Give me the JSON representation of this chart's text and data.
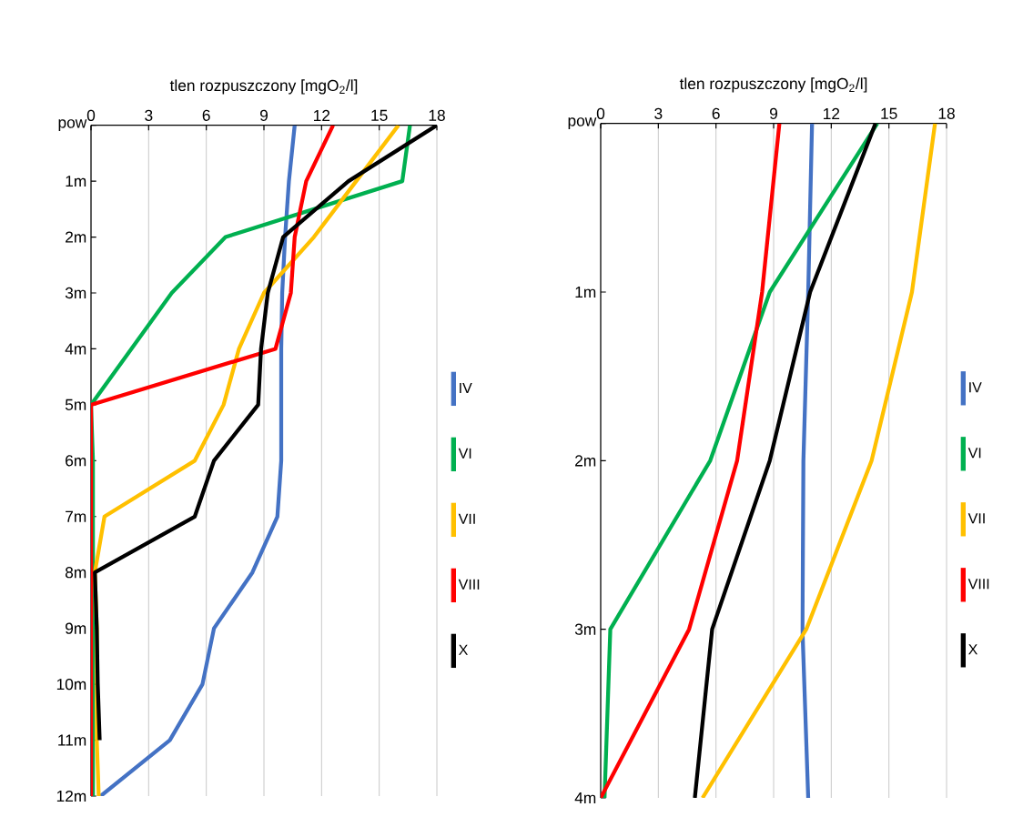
{
  "chart_data": [
    {
      "type": "line",
      "orientation": "horizontal",
      "xlabel": "tlen rozpuszczony [mgO$_{2}$/l]",
      "categories": [
        "pow",
        "1m",
        "2m",
        "3m",
        "4m",
        "5m",
        "6m",
        "7m",
        "8m",
        "9m",
        "10m",
        "11m",
        "12m"
      ],
      "xlim": [
        0,
        18
      ],
      "xticks": [
        0,
        3,
        6,
        9,
        12,
        15,
        18
      ],
      "grid": "x",
      "legend": "right",
      "series": [
        {
          "name": "IV",
          "color": "#4472c4",
          "values": [
            10.6,
            10.3,
            10.1,
            9.95,
            9.9,
            9.9,
            9.9,
            9.7,
            8.4,
            6.4,
            5.8,
            4.1,
            0.5
          ]
        },
        {
          "name": "VI",
          "color": "#00b050",
          "values": [
            16.6,
            16.2,
            7.0,
            4.2,
            2.1,
            0,
            0.1,
            0.1,
            0.1,
            0.1,
            0.1,
            0.1,
            0.1
          ]
        },
        {
          "name": "VII",
          "color": "#ffc000",
          "values": [
            16.0,
            13.8,
            11.6,
            9.0,
            7.7,
            6.9,
            5.4,
            0.7,
            0.2,
            0.3,
            0.3,
            0.3,
            0.4
          ]
        },
        {
          "name": "VIII",
          "color": "#ff0000",
          "values": [
            12.6,
            11.2,
            10.6,
            10.4,
            9.6,
            0,
            0,
            0,
            0,
            0,
            0,
            0,
            0
          ]
        },
        {
          "name": "X",
          "color": "#000000",
          "values": [
            18,
            13.4,
            10.0,
            9.2,
            8.85,
            8.7,
            6.4,
            5.4,
            0.2,
            0.3,
            0.35,
            0.45,
            null
          ]
        }
      ]
    },
    {
      "type": "line",
      "orientation": "horizontal",
      "xlabel": "tlen rozpuszczony [mgO$_{2}$/l]",
      "categories": [
        "pow",
        "1m",
        "2m",
        "3m",
        "4m"
      ],
      "xlim": [
        0,
        18
      ],
      "xticks": [
        0,
        3,
        6,
        9,
        12,
        15,
        18
      ],
      "grid": "x",
      "legend": "right",
      "series": [
        {
          "name": "IV",
          "color": "#4472c4",
          "values": [
            11.0,
            10.8,
            10.55,
            10.5,
            10.8
          ]
        },
        {
          "name": "VI",
          "color": "#00b050",
          "values": [
            14.4,
            8.8,
            5.7,
            0.5,
            0.2
          ]
        },
        {
          "name": "VII",
          "color": "#ffc000",
          "values": [
            17.4,
            16.2,
            14.1,
            10.7,
            5.3
          ]
        },
        {
          "name": "VIII",
          "color": "#ff0000",
          "values": [
            9.3,
            8.4,
            7.1,
            4.6,
            0
          ]
        },
        {
          "name": "X",
          "color": "#000000",
          "values": [
            14.3,
            10.9,
            8.8,
            5.8,
            4.9
          ]
        }
      ]
    }
  ]
}
